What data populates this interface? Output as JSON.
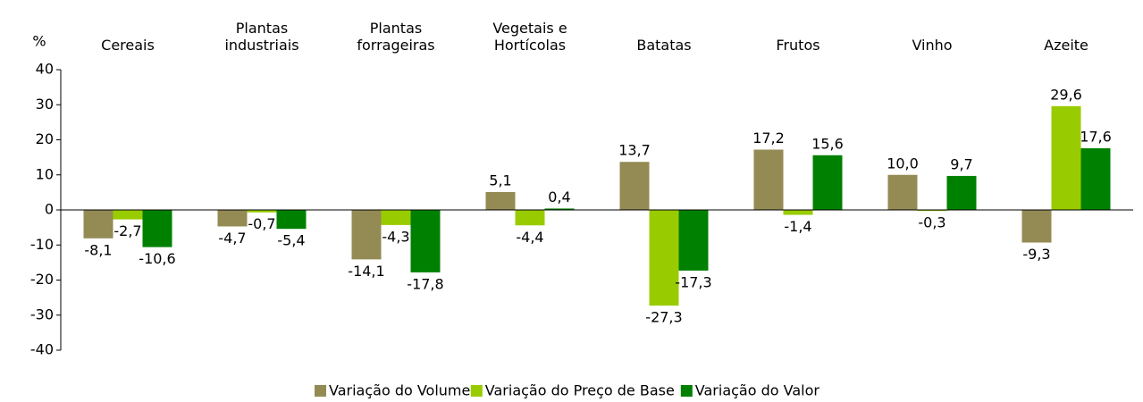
{
  "chart_data": {
    "type": "bar",
    "ylabel": "%",
    "categories": [
      "Cereais",
      "Plantas industriais",
      "Plantas forrageiras",
      "Vegetais e Hortícolas",
      "Batatas",
      "Frutos",
      "Vinho",
      "Azeite"
    ],
    "series": [
      {
        "name": "Variação do Volume",
        "color": "#948a54",
        "values": [
          -8.1,
          -4.7,
          -14.1,
          5.1,
          13.7,
          17.2,
          10.0,
          -9.3
        ],
        "value_labels": [
          "-8,1",
          "-4,7",
          "-14,1",
          "5,1",
          "13,7",
          "17,2",
          "10,0",
          "-9,3"
        ]
      },
      {
        "name": "Variação do Preço de Base",
        "color": "#99cc00",
        "values": [
          -2.7,
          -0.7,
          -4.3,
          -4.4,
          -27.3,
          -1.4,
          -0.3,
          29.6
        ],
        "value_labels": [
          "-2,7",
          "-0,7",
          "-4,3",
          "-4,4",
          "-27,3",
          "-1,4",
          "-0,3",
          "29,6"
        ]
      },
      {
        "name": "Variação do Valor",
        "color": "#008000",
        "values": [
          -10.6,
          -5.4,
          -17.8,
          0.4,
          -17.3,
          15.6,
          9.7,
          17.6
        ],
        "value_labels": [
          "-10,6",
          "-5,4",
          "-17,8",
          "0,4",
          "-17,3",
          "15,6",
          "9,7",
          "17,6"
        ]
      }
    ],
    "ylim": [
      -40,
      40
    ],
    "yticks": [
      -40,
      -30,
      -20,
      -10,
      0,
      10,
      20,
      30,
      40
    ],
    "grid": false,
    "legend": "bottom"
  }
}
